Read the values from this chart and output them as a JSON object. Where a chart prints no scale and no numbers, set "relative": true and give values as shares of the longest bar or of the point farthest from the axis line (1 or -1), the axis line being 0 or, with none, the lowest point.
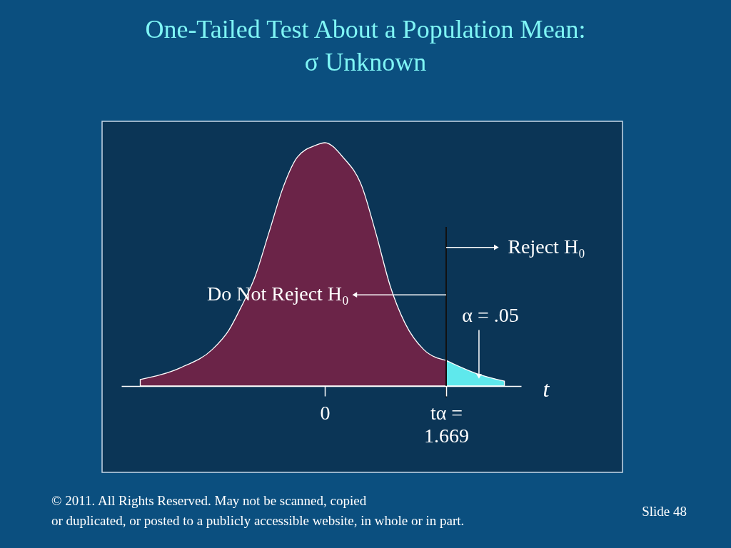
{
  "chart_data": {
    "type": "area",
    "title": [
      "One-Tailed Test About a Population Mean:",
      "σ Unknown"
    ],
    "xlabel": "t",
    "relative": true,
    "xlim": [
      -2.8,
      2.7
    ],
    "xticks": [
      0,
      {
        "value": 1.669,
        "label": "tα =\n1.669"
      }
    ],
    "series": [
      {
        "color": "#6b2448",
        "x": [
          -2.54,
          -1.98,
          -1.55,
          -1.32,
          -1.16,
          -0.96,
          -0.77,
          -0.57,
          -0.38,
          -0.12,
          0,
          0.25,
          0.51,
          0.7,
          0.9,
          1.1,
          1.36,
          1.669
        ],
        "values": [
          0.027,
          0.076,
          0.15,
          0.23,
          0.32,
          0.45,
          0.63,
          0.82,
          0.94,
          0.99,
          1.0,
          0.94,
          0.82,
          0.63,
          0.41,
          0.26,
          0.15,
          0.105
        ]
      },
      {
        "color": "#5fe8ec",
        "x": [
          1.669,
          2.08,
          2.47
        ],
        "values": [
          0.105,
          0.052,
          0.02
        ]
      }
    ],
    "ref_lines": [
      {
        "axis": "x",
        "value": 1.669,
        "color": "#111111"
      }
    ],
    "annotations": [
      {
        "text": "Reject H₀",
        "x": 2.36,
        "y": 0.57
      },
      {
        "text": "Do Not Reject H₀",
        "x": 0.41,
        "y": 0.375
      },
      {
        "text": "α = .05",
        "x": 2.12,
        "y": 0.04
      },
      "© 2011. All Rights Reserved.  May not be scanned, copied\nor duplicated, or posted to a publicly accessible website, in whole or in part.",
      "Slide  48"
    ],
    "marker": "none"
  }
}
